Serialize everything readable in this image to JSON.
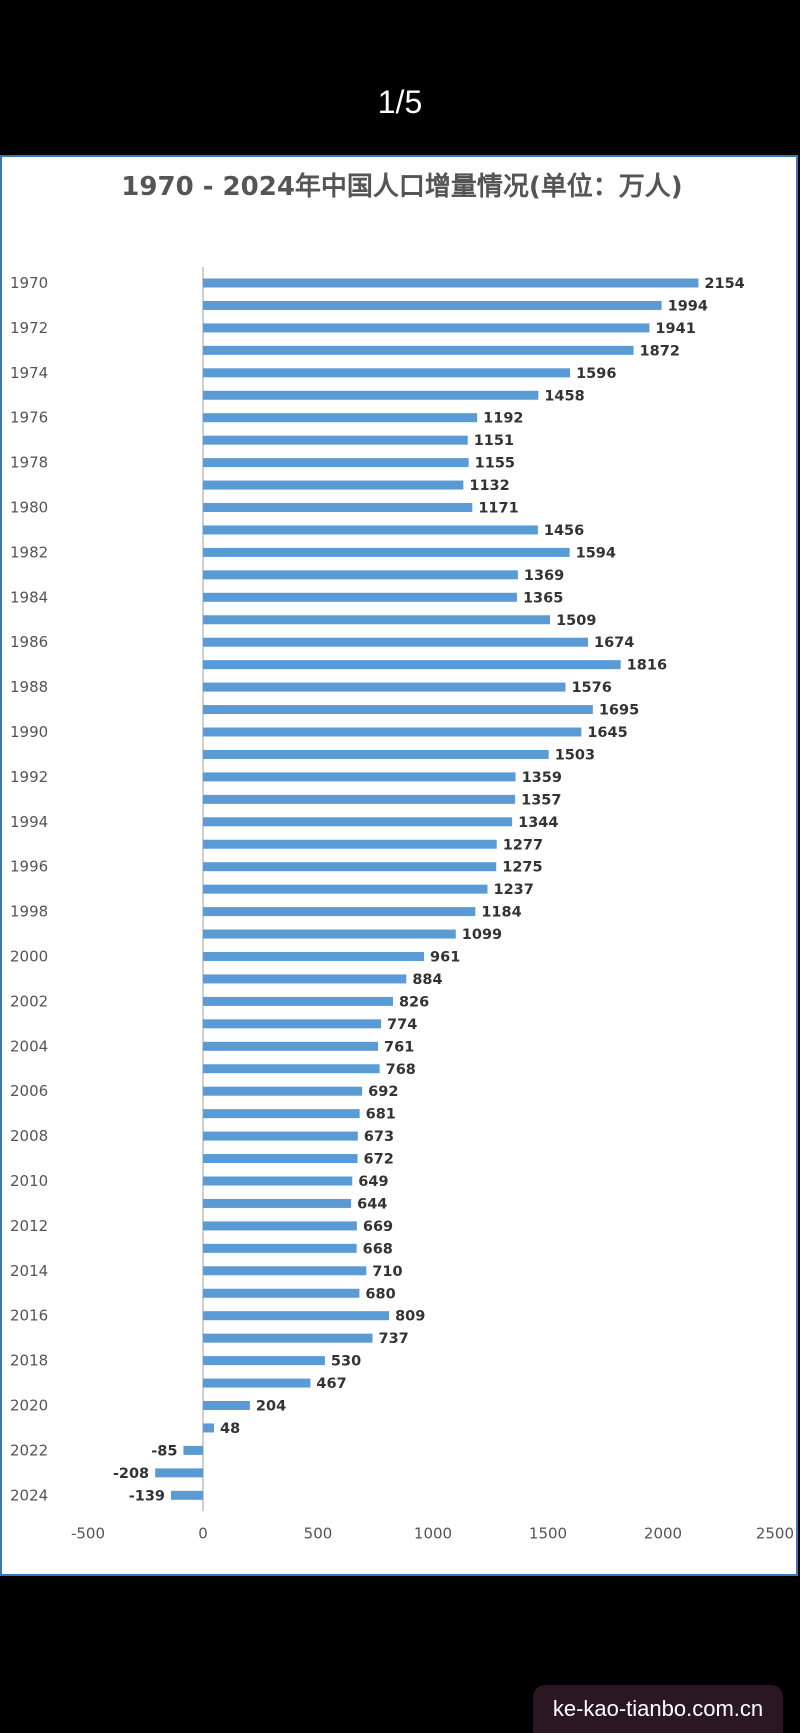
{
  "header": {
    "page_counter": "1/5"
  },
  "watermark": {
    "text": "ke-kao-tianbo.com.cn"
  },
  "colors": {
    "bar": "#5b9bd5",
    "axis": "#bfbfbf",
    "frame": "#3a78b5"
  },
  "chart_data": {
    "type": "bar",
    "orientation": "horizontal",
    "title": "1970 - 2024年中国人口增量情况(单位：万人)",
    "xlabel": "",
    "ylabel": "",
    "xlim": [
      -500,
      2500
    ],
    "x_ticks": [
      -500,
      0,
      500,
      1000,
      1500,
      2000,
      2500
    ],
    "grid": false,
    "legend": "none",
    "categories": [
      "1970",
      "1971",
      "1972",
      "1973",
      "1974",
      "1975",
      "1976",
      "1977",
      "1978",
      "1979",
      "1980",
      "1981",
      "1982",
      "1983",
      "1984",
      "1985",
      "1986",
      "1987",
      "1988",
      "1989",
      "1990",
      "1991",
      "1992",
      "1993",
      "1994",
      "1995",
      "1996",
      "1997",
      "1998",
      "1999",
      "2000",
      "2001",
      "2002",
      "2003",
      "2004",
      "2005",
      "2006",
      "2007",
      "2008",
      "2009",
      "2010",
      "2011",
      "2012",
      "2013",
      "2014",
      "2015",
      "2016",
      "2017",
      "2018",
      "2019",
      "2020",
      "2021",
      "2022",
      "2023",
      "2024"
    ],
    "category_labels_shown": [
      "1970",
      "",
      "1972",
      "",
      "1974",
      "",
      "1976",
      "",
      "1978",
      "",
      "1980",
      "",
      "1982",
      "",
      "1984",
      "",
      "1986",
      "",
      "1988",
      "",
      "1990",
      "",
      "1992",
      "",
      "1994",
      "",
      "1996",
      "",
      "1998",
      "",
      "2000",
      "",
      "2002",
      "",
      "2004",
      "",
      "2006",
      "",
      "2008",
      "",
      "2010",
      "",
      "2012",
      "",
      "2014",
      "",
      "2016",
      "",
      "2018",
      "",
      "2020",
      "",
      "2022",
      "",
      "2024"
    ],
    "values": [
      2154,
      1994,
      1941,
      1872,
      1596,
      1458,
      1192,
      1151,
      1155,
      1132,
      1171,
      1456,
      1594,
      1369,
      1365,
      1509,
      1674,
      1816,
      1576,
      1695,
      1645,
      1503,
      1359,
      1357,
      1344,
      1277,
      1275,
      1237,
      1184,
      1099,
      961,
      884,
      826,
      774,
      761,
      768,
      692,
      681,
      673,
      672,
      649,
      644,
      669,
      668,
      710,
      680,
      809,
      737,
      530,
      467,
      204,
      48,
      -85,
      -208,
      -139
    ]
  }
}
